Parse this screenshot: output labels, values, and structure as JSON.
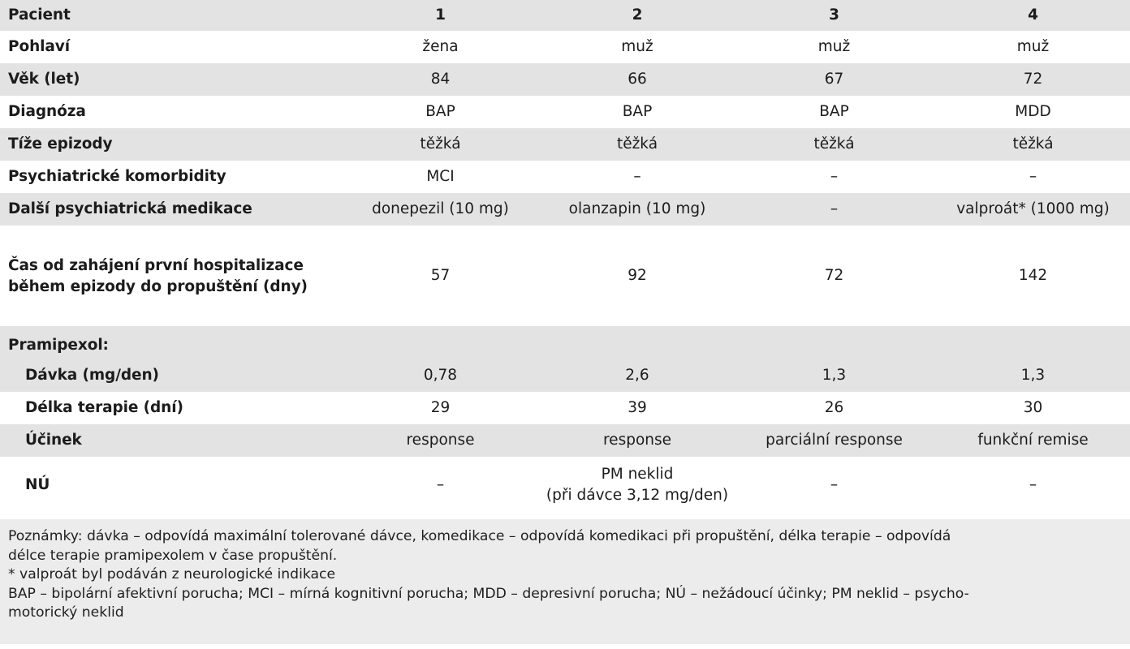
{
  "table": {
    "header": {
      "label": "Pacient",
      "cols": [
        "1",
        "2",
        "3",
        "4"
      ]
    },
    "rows": [
      {
        "label": "Pohlaví",
        "values": [
          "žena",
          "muž",
          "muž",
          "muž"
        ]
      },
      {
        "label": "Věk (let)",
        "values": [
          "84",
          "66",
          "67",
          "72"
        ]
      },
      {
        "label": "Diagnóza",
        "values": [
          "BAP",
          "BAP",
          "BAP",
          "MDD"
        ]
      },
      {
        "label": "Tíže epizody",
        "values": [
          "těžká",
          "těžká",
          "těžká",
          "těžká"
        ]
      },
      {
        "label": "Psychiatrické komorbidity",
        "values": [
          "MCI",
          "–",
          "–",
          "–"
        ]
      },
      {
        "label": "Další psychiatrická medikace",
        "values": [
          "donepezil (10 mg)",
          "olanzapin (10 mg)",
          "–",
          "valproát* (1000 mg)"
        ]
      },
      {
        "label_line1": "Čas od zahájení první hospitalizace",
        "label_line2": "během epizody do propuštění (dny)",
        "values": [
          "57",
          "92",
          "72",
          "142"
        ]
      }
    ],
    "section_label": "Pramipexol:",
    "sub_rows": [
      {
        "label": "Dávka (mg/den)",
        "values": [
          "0,78",
          "2,6",
          "1,3",
          "1,3"
        ]
      },
      {
        "label": "Délka terapie (dní)",
        "values": [
          "29",
          "39",
          "26",
          "30"
        ]
      },
      {
        "label": "Účinek",
        "values": [
          "response",
          "response",
          "parciální response",
          "funkční remise"
        ]
      },
      {
        "label": "NÚ",
        "values": [
          "–",
          "PM neklid",
          "–",
          "–"
        ],
        "value2_line2": "(při dávce 3,12 mg/den)"
      }
    ]
  },
  "notes": {
    "line1": "Poznámky: dávka – odpovídá maximální tolerované dávce, komedikace – odpovídá komedikaci při propuštění, délka terapie – odpovídá",
    "line2": "délce terapie pramipexolem v čase propuštění.",
    "line3": "* valproát byl podáván z neurologické indikace",
    "line4": "BAP – bipolární afektivní porucha; MCI – mírná kognitivní porucha; MDD – depresivní porucha; NÚ – nežádoucí účinky; PM neklid – psycho-",
    "line5": "motorický neklid"
  }
}
